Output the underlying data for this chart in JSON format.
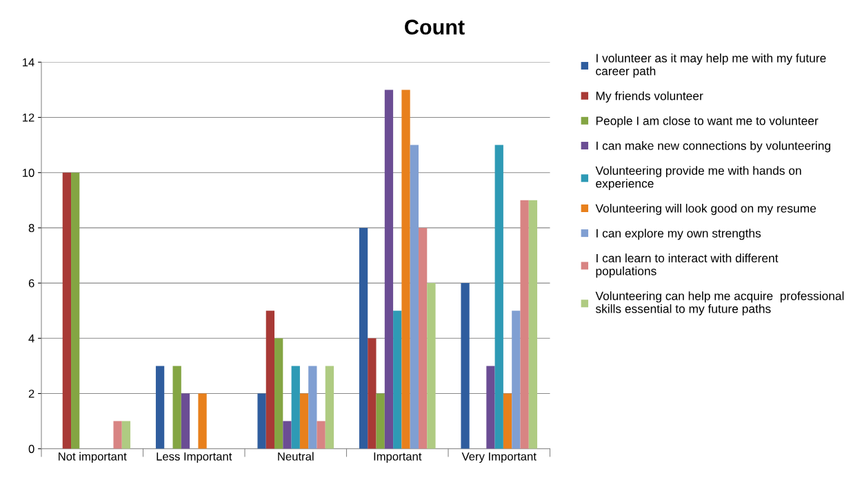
{
  "chart_data": {
    "type": "bar",
    "title": "Count",
    "categories": [
      "Not important",
      "Less Important",
      "Neutral",
      "Important",
      "Very Important"
    ],
    "series": [
      {
        "name": "I volunteer as it may help me with my future\ncareer path",
        "color": "#2f5d9e",
        "values": [
          0,
          3,
          2,
          8,
          6
        ]
      },
      {
        "name": "My friends volunteer",
        "color": "#a83a36",
        "values": [
          10,
          0,
          5,
          4,
          0
        ]
      },
      {
        "name": "People I am close to want me to volunteer",
        "color": "#84a543",
        "values": [
          10,
          3,
          4,
          2,
          0
        ]
      },
      {
        "name": "I can make new connections by volunteering",
        "color": "#6b4d94",
        "values": [
          0,
          2,
          1,
          13,
          3
        ]
      },
      {
        "name": "Volunteering provide me with hands on\nexperience",
        "color": "#2e9ab5",
        "values": [
          0,
          0,
          3,
          5,
          11
        ]
      },
      {
        "name": "Volunteering will look good on my resume",
        "color": "#e8801c",
        "values": [
          0,
          2,
          2,
          13,
          2
        ]
      },
      {
        "name": "I can explore my own strengths",
        "color": "#809fd2",
        "values": [
          0,
          0,
          3,
          11,
          5
        ]
      },
      {
        "name": "I can learn to interact with different\npopulations",
        "color": "#d88483",
        "values": [
          1,
          0,
          1,
          8,
          9
        ]
      },
      {
        "name": "Volunteering can help me acquire  professional\nskills essential to my future paths",
        "color": "#afcb82",
        "values": [
          1,
          0,
          3,
          6,
          9
        ]
      }
    ],
    "ylim": [
      0,
      14
    ],
    "yticks": [
      0,
      2,
      4,
      6,
      8,
      10,
      12,
      14
    ],
    "grid": "y",
    "legend": "right"
  }
}
